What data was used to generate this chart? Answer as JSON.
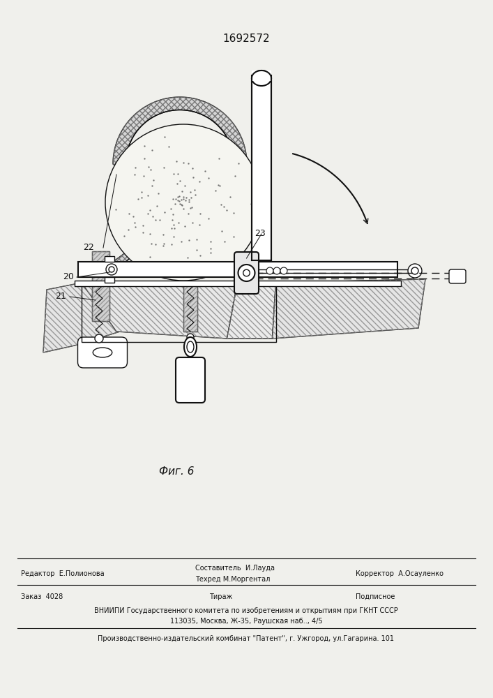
{
  "patent_number": "1692572",
  "fig_label": "Фиг. 6",
  "bg_color": "#f0f0ec",
  "line_color": "#111111",
  "footer": {
    "row1": [
      [
        0.03,
        "Редактор  Е.Полионова"
      ],
      [
        0.36,
        "Составитель  И.Лауда"
      ],
      [
        0.36,
        "Техред М.Моргентал"
      ],
      [
        0.72,
        "Корректор  А.Осауленко"
      ]
    ],
    "order": "Заказ  4028",
    "tirazh": "Тираж",
    "podpisnoe": "Подписное",
    "vniip1": "ВНИИПИ Государственного комитета по изобретениям и открытиям при ГКНТ СССР",
    "vniip2": "113035, Москва, Ж-35, Раушская наб.., 4/5",
    "production": "Производственно-издательский комбинат \"Патент\", г. Ужгород, ул.Гагарина. 101"
  }
}
